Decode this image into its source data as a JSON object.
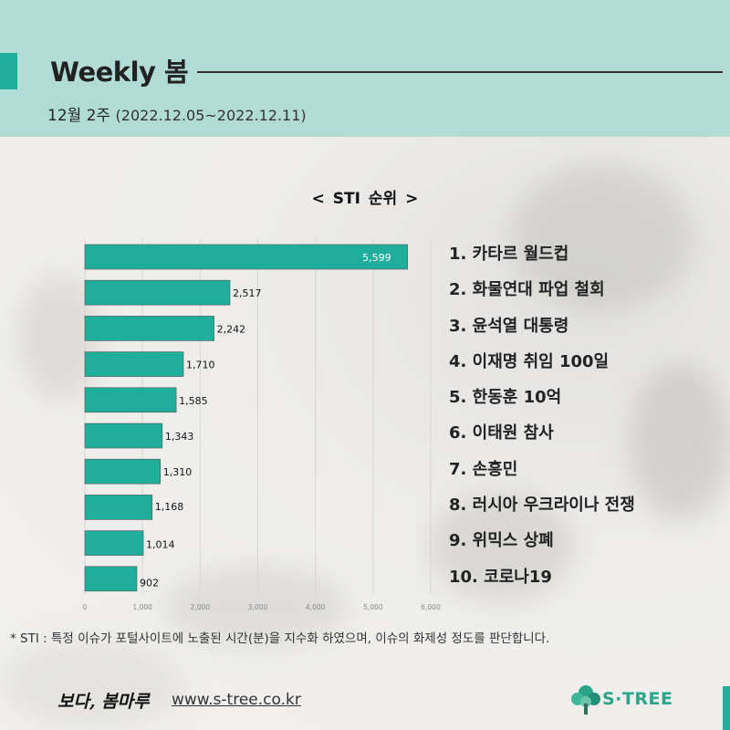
{
  "header": {
    "title": "Weekly 봄",
    "period_week": "12월 2주",
    "period_range": "(2022.12.05~2022.12.11)"
  },
  "chart_data": {
    "type": "bar",
    "orientation": "horizontal",
    "title": "< STI 순위 >",
    "categories": [
      "1. 카타르 월드컵",
      "2. 화물연대 파업 철회",
      "3. 윤석열 대통령",
      "4. 이재명 취임 100일",
      "5. 한동훈 10억",
      "6. 이태원 참사",
      "7. 손흥민",
      "8. 러시아 우크라이나 전쟁",
      "9. 위믹스 상폐",
      "10. 코로나19"
    ],
    "values": [
      5599,
      2517,
      2242,
      1710,
      1585,
      1343,
      1310,
      1168,
      1014,
      902
    ],
    "value_labels": [
      "5,599",
      "2,517",
      "2,242",
      "1,710",
      "1,585",
      "1,343",
      "1,310",
      "1,168",
      "1,014",
      "902"
    ],
    "xlim": [
      0,
      6000
    ],
    "xticks": [
      0,
      1000,
      2000,
      3000,
      4000,
      5000,
      6000
    ],
    "xtick_labels": [
      "0",
      "1,000",
      "2,000",
      "3,000",
      "4,000",
      "5,000",
      "6,000"
    ],
    "grid": true,
    "bar_color": "#1fae9b"
  },
  "footnote": "* STI : 특정 이슈가 포털사이트에 노출된 시간(분)을 지수화 하였으며, 이슈의 화제성 정도를 판단합니다.",
  "footer": {
    "tagline": "보다, 봄마루",
    "url": "www.s-tree.co.kr",
    "brand": "S·TREE"
  },
  "colors": {
    "accent": "#1fae9b",
    "header_bg": "#b1dcd5",
    "brand": "#2aa48a"
  },
  "icons": {
    "brand_logo": "tree-icon"
  }
}
